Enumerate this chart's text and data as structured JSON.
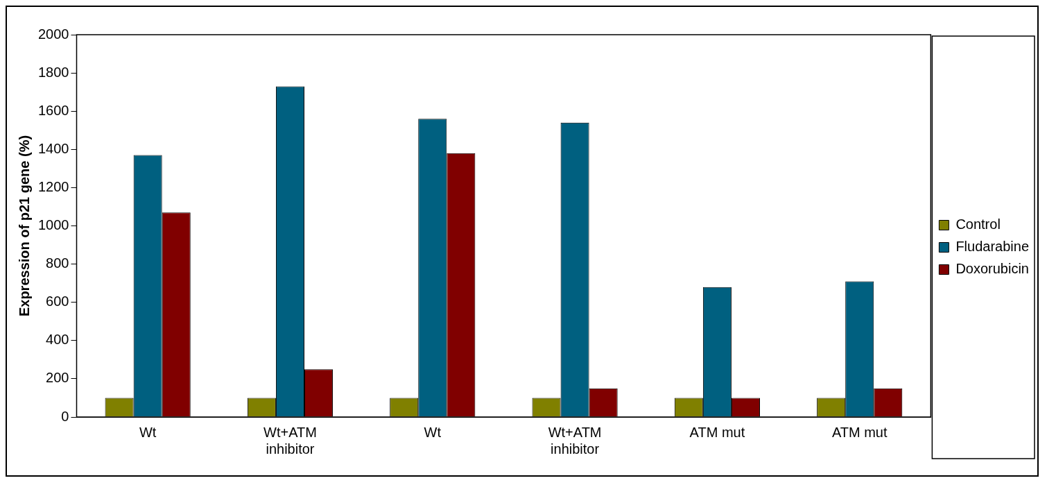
{
  "chart_data": {
    "type": "bar",
    "ylabel": "Expression of p21 gene (%)",
    "categories": [
      "Wt",
      "Wt+ATM inhibitor",
      "Wt",
      "Wt+ATM inhibitor",
      "ATM mut",
      "ATM mut"
    ],
    "series": [
      {
        "name": "Control",
        "color": "#808000",
        "values": [
          100,
          100,
          100,
          100,
          100,
          100
        ]
      },
      {
        "name": "Fludarabine",
        "color": "#006080",
        "values": [
          1370,
          1730,
          1560,
          1540,
          680,
          710
        ]
      },
      {
        "name": "Doxorubicin",
        "color": "#800000",
        "values": [
          1070,
          250,
          1380,
          150,
          100,
          150
        ]
      }
    ],
    "ylim": [
      0,
      2000
    ],
    "yticks": [
      0,
      200,
      400,
      600,
      800,
      1000,
      1200,
      1400,
      1600,
      1800,
      2000
    ],
    "grid": false,
    "legend": "right"
  }
}
